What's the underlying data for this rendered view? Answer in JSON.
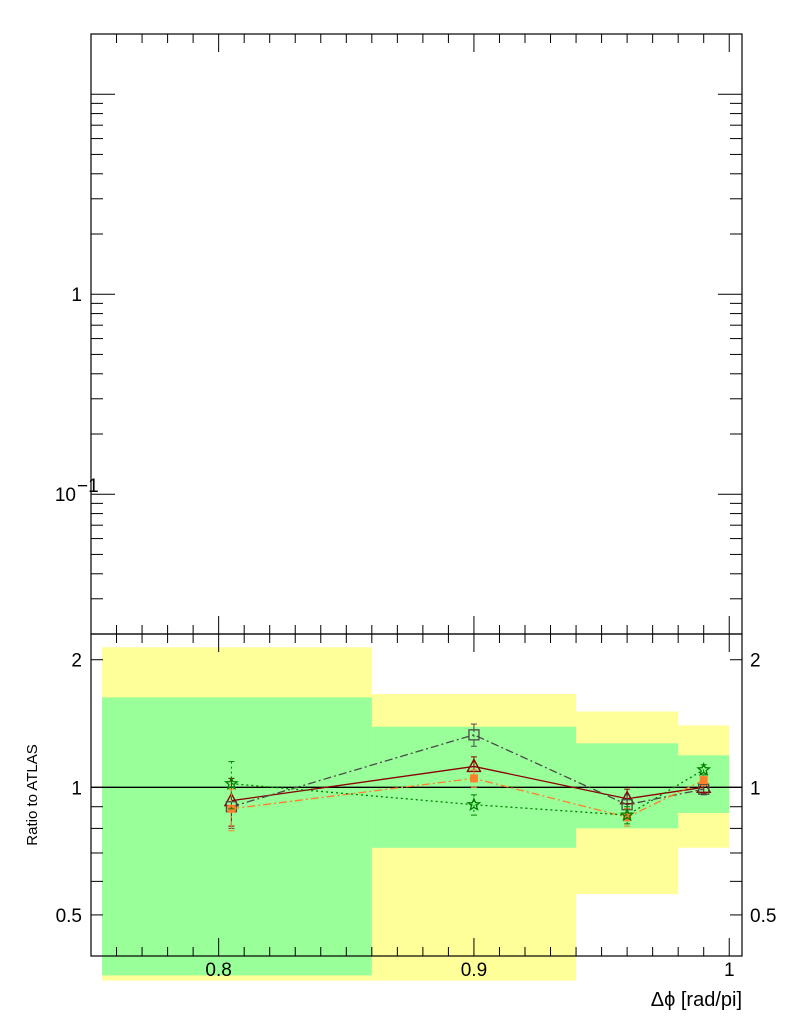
{
  "chart_data": [
    {
      "type": "line",
      "panel": "main",
      "title": "",
      "xlabel": "",
      "ylabel": "",
      "yscale": "log",
      "ylim": [
        0.02,
        20
      ],
      "xlim": [
        0.75,
        1.005
      ],
      "yticks": [
        {
          "value": 1,
          "label": "1"
        },
        {
          "value": 0.1,
          "label": "10",
          "sup": "−1"
        }
      ],
      "series": []
    },
    {
      "type": "line",
      "panel": "ratio",
      "title": "",
      "xlabel": "Δϕ [rad/pi]",
      "ylabel": "Ratio to ATLAS",
      "yscale": "log",
      "ylim": [
        0.4,
        2.3
      ],
      "xlim": [
        0.75,
        1.005
      ],
      "xticks": [
        {
          "value": 0.8,
          "label": "0.8"
        },
        {
          "value": 0.9,
          "label": "0.9"
        },
        {
          "value": 1.0,
          "label": "1"
        }
      ],
      "yticks": [
        {
          "value": 0.5,
          "label": "0.5"
        },
        {
          "value": 1,
          "label": "1"
        },
        {
          "value": 2,
          "label": "2"
        }
      ],
      "reference_line": 1,
      "uncertainty_bands": {
        "bins": [
          [
            0.75,
            0.86
          ],
          [
            0.86,
            0.94
          ],
          [
            0.94,
            0.98
          ],
          [
            0.98,
            1.0
          ]
        ],
        "inner": {
          "color": "#99ff99",
          "lo": [
            0.36,
            0.72,
            0.8,
            0.87
          ],
          "hi": [
            1.63,
            1.39,
            1.27,
            1.19
          ]
        },
        "outer": {
          "color": "#ffff99",
          "lo": [
            0.35,
            0.35,
            0.56,
            0.72
          ],
          "hi": [
            2.14,
            1.66,
            1.51,
            1.4
          ]
        }
      },
      "series": [
        {
          "color": "#8b0000",
          "marker": "triangle-open",
          "dash": "solid",
          "x": [
            0.805,
            0.9,
            0.96,
            0.99
          ],
          "y": [
            0.93,
            1.12,
            0.94,
            1.0
          ],
          "err": [
            0.12,
            0.06,
            0.05,
            0.03
          ]
        },
        {
          "color": "#4a4a4a",
          "marker": "square-open",
          "dash": "dashdot",
          "x": [
            0.805,
            0.9,
            0.96,
            0.99
          ],
          "y": [
            0.9,
            1.33,
            0.91,
            0.99
          ],
          "err": [
            0.1,
            0.08,
            0.05,
            0.03
          ]
        },
        {
          "color": "#ff7f2a",
          "marker": "square-filled",
          "dash": "dashdot",
          "x": [
            0.805,
            0.9,
            0.96,
            0.99
          ],
          "y": [
            0.89,
            1.05,
            0.85,
            1.04
          ],
          "err": [
            0.1,
            0.05,
            0.04,
            0.03
          ]
        },
        {
          "color": "#008000",
          "marker": "star-open",
          "dash": "dotted",
          "x": [
            0.805,
            0.9,
            0.96,
            0.99
          ],
          "y": [
            1.02,
            0.91,
            0.86,
            1.1
          ],
          "err": [
            0.13,
            0.05,
            0.04,
            0.03
          ]
        }
      ]
    }
  ]
}
